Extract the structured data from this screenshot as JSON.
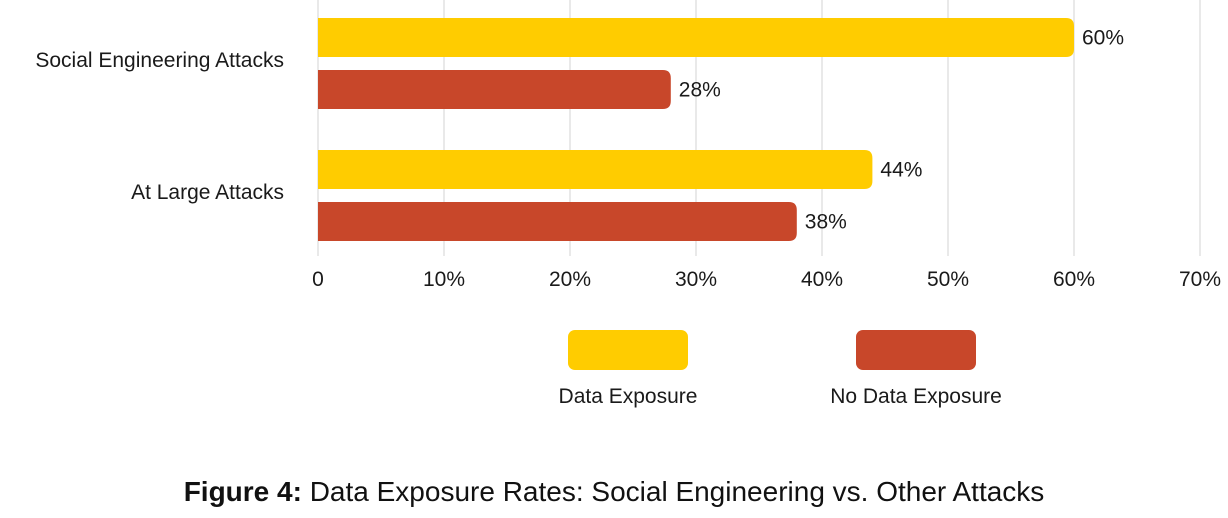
{
  "chart_data": {
    "type": "bar",
    "orientation": "horizontal",
    "categories": [
      "Social Engineering Attacks",
      "At Large Attacks"
    ],
    "series": [
      {
        "name": "Data Exposure",
        "color": "#FFCC00",
        "values": [
          60,
          44
        ],
        "labels": [
          "60%",
          "44%"
        ]
      },
      {
        "name": "No Data Exposure",
        "color": "#C8472A",
        "values": [
          28,
          38
        ],
        "labels": [
          "28%",
          "38%"
        ]
      }
    ],
    "xlim": [
      0,
      70
    ],
    "x_ticks": [
      0,
      10,
      20,
      30,
      40,
      50,
      60,
      70
    ],
    "x_tick_labels": [
      "0",
      "10%",
      "20%",
      "30%",
      "40%",
      "50%",
      "60%",
      "70%"
    ],
    "grid": true,
    "legend_placement": "bottom",
    "title": "",
    "xlabel": "",
    "ylabel": ""
  },
  "caption": {
    "prefix": "Figure 4:",
    "text": " Data Exposure Rates: Social Engineering vs. Other Attacks"
  }
}
